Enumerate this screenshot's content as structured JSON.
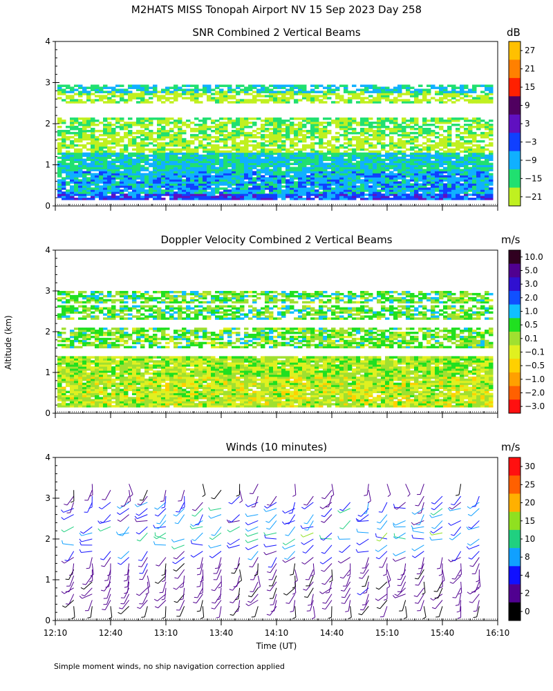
{
  "header": {
    "title": "M2HATS MISS Tonopah Airport NV  15 Sep 2023 Day 258"
  },
  "y_axis_label": "Altitude (km)",
  "footer_note": "Simple moment winds, no ship navigation correction applied",
  "chart_data": [
    {
      "type": "heatmap",
      "title": "SNR Combined 2 Vertical Beams",
      "unit": "dB",
      "x_range": [
        "12:10",
        "16:10"
      ],
      "ylim": [
        0,
        4
      ],
      "yticks": [
        "0",
        "1",
        "2",
        "3",
        "4"
      ],
      "colorbar": {
        "labels": [
          "27",
          "21",
          "15",
          "9",
          "3",
          "−3",
          "−9",
          "−15",
          "−21"
        ],
        "colors": [
          "#ffc000",
          "#ff8000",
          "#ff2000",
          "#500060",
          "#6010c0",
          "#1040ff",
          "#10b0ff",
          "#20e070",
          "#c0f020"
        ]
      },
      "layers": [
        {
          "from_km": 0.15,
          "to_km": 0.3,
          "level_db": -3
        },
        {
          "from_km": 0.3,
          "to_km": 0.85,
          "level_db": -9
        },
        {
          "from_km": 0.85,
          "to_km": 1.3,
          "level_db": -12
        },
        {
          "from_km": 1.3,
          "to_km": 1.7,
          "level_db": -21
        },
        {
          "from_km": 1.7,
          "to_km": 2.1,
          "level_db": -18
        },
        {
          "from_km": 2.5,
          "to_km": 2.75,
          "level_db": -21
        },
        {
          "from_km": 2.75,
          "to_km": 2.9,
          "level_db": -12
        }
      ]
    },
    {
      "type": "heatmap",
      "title": "Doppler Velocity Combined 2 Vertical Beams",
      "unit": "m/s",
      "x_range": [
        "12:10",
        "16:10"
      ],
      "ylim": [
        0,
        4
      ],
      "yticks": [
        "0",
        "1",
        "2",
        "3",
        "4"
      ],
      "colorbar": {
        "labels": [
          "10.0",
          "5.0",
          "3.0",
          "2.0",
          "1.0",
          "0.5",
          "0.1",
          "−0.1",
          "−0.5",
          "−1.0",
          "−2.0",
          "−3.0"
        ],
        "colors": [
          "#300020",
          "#500090",
          "#3010d0",
          "#1050ff",
          "#10c0ff",
          "#20e020",
          "#a0e030",
          "#e0f020",
          "#ffd000",
          "#ffa000",
          "#ff6000",
          "#ff1010"
        ]
      },
      "layers": [
        {
          "from_km": 0.15,
          "to_km": 0.9,
          "level_ms": -0.5
        },
        {
          "from_km": 0.9,
          "to_km": 1.4,
          "level_ms": -0.3
        },
        {
          "from_km": 1.6,
          "to_km": 2.1,
          "level_ms": 0.0
        },
        {
          "from_km": 2.3,
          "to_km": 2.6,
          "level_ms": 0.1
        },
        {
          "from_km": 2.7,
          "to_km": 2.95,
          "level_ms": 0.1
        }
      ]
    },
    {
      "type": "scatter",
      "title": "Winds (10 minutes)",
      "unit": "m/s",
      "xlabel": "Time (UT)",
      "xticks": [
        "12:10",
        "12:40",
        "13:10",
        "13:40",
        "14:10",
        "14:40",
        "15:10",
        "15:40",
        "16:10"
      ],
      "x_range_hours": [
        12.1667,
        16.1667
      ],
      "ylim": [
        0,
        4
      ],
      "yticks": [
        "0",
        "1",
        "2",
        "3",
        "4"
      ],
      "colorbar": {
        "labels": [
          "30",
          "25",
          "20",
          "15",
          "10",
          "8",
          "4",
          "2",
          "0"
        ],
        "colors": [
          "#ff1010",
          "#ff6000",
          "#ffb000",
          "#90e020",
          "#20d080",
          "#10a0ff",
          "#1010ff",
          "#500090",
          "#000000"
        ]
      },
      "profile_interval_minutes": 10,
      "profile_km": [
        0.35,
        0.5,
        0.65,
        0.8,
        0.95,
        1.1,
        1.25,
        1.4,
        1.55,
        1.7,
        1.85,
        2.0,
        2.15,
        2.3,
        2.45,
        2.6,
        2.75,
        2.9,
        3.05,
        3.2,
        3.35
      ],
      "profile_speed_ms": [
        3,
        4,
        5,
        5,
        5,
        4,
        4,
        5,
        6,
        8,
        10,
        12,
        14,
        12,
        10,
        10,
        12,
        8,
        6,
        5,
        4
      ],
      "profile_dir_deg": [
        200,
        210,
        220,
        210,
        200,
        195,
        190,
        200,
        220,
        240,
        250,
        260,
        250,
        240,
        240,
        230,
        250,
        220,
        200,
        190,
        180
      ]
    }
  ]
}
